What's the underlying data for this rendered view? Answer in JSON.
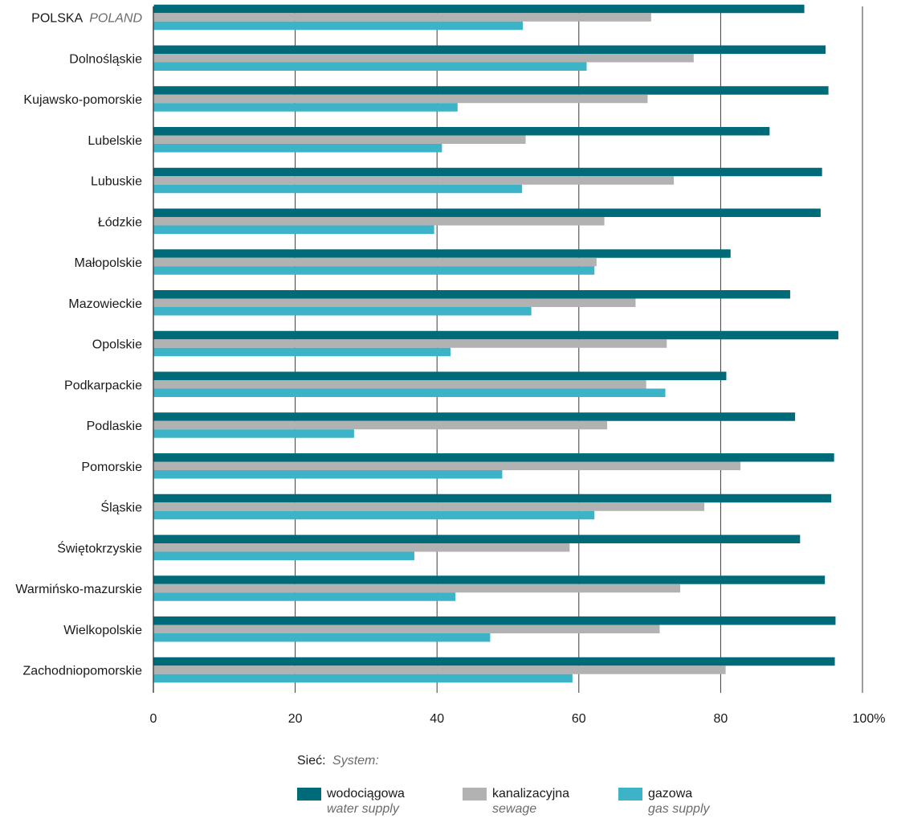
{
  "chart_data": {
    "type": "bar",
    "orientation": "horizontal",
    "categories": [
      {
        "label": "POLSKA",
        "label_en": "POLAND"
      },
      {
        "label": "Dolnośląskie"
      },
      {
        "label": "Kujawsko-pomorskie"
      },
      {
        "label": "Lubelskie"
      },
      {
        "label": "Lubuskie"
      },
      {
        "label": "Łódzkie"
      },
      {
        "label": "Małopolskie"
      },
      {
        "label": "Mazowieckie"
      },
      {
        "label": "Opolskie"
      },
      {
        "label": "Podkarpackie"
      },
      {
        "label": "Podlaskie"
      },
      {
        "label": "Pomorskie"
      },
      {
        "label": "Śląskie"
      },
      {
        "label": "Świętokrzyskie"
      },
      {
        "label": "Warmińsko-mazurskie"
      },
      {
        "label": "Wielkopolskie"
      },
      {
        "label": "Zachodniopomorskie"
      }
    ],
    "series": [
      {
        "name": "wodociągowa",
        "name_en": "water supply",
        "color": "#006b78",
        "values": [
          91.8,
          94.8,
          95.2,
          86.9,
          94.3,
          94.1,
          81.4,
          89.8,
          96.6,
          80.8,
          90.5,
          96.0,
          95.6,
          91.2,
          94.7,
          96.2,
          96.1
        ]
      },
      {
        "name": "kanalizacyjna",
        "name_en": "sewage",
        "color": "#b2b2b2",
        "values": [
          70.2,
          76.2,
          69.7,
          52.5,
          73.4,
          63.6,
          62.5,
          68.0,
          72.4,
          69.5,
          64.0,
          82.8,
          77.7,
          58.7,
          74.3,
          71.4,
          80.7
        ]
      },
      {
        "name": "gazowa",
        "name_en": "gas supply",
        "color": "#3cb3c6",
        "values": [
          52.1,
          61.1,
          42.9,
          40.7,
          52.0,
          39.6,
          62.2,
          53.3,
          41.9,
          72.2,
          28.3,
          49.2,
          62.2,
          36.8,
          42.6,
          47.5,
          59.1
        ]
      }
    ],
    "xlim": [
      0,
      100
    ],
    "xticks": [
      "0",
      "20",
      "40",
      "60",
      "80",
      "100%"
    ],
    "grid": true,
    "legend_position": "bottom"
  },
  "legend": {
    "title": "Sieć:",
    "title_en": "System:"
  }
}
